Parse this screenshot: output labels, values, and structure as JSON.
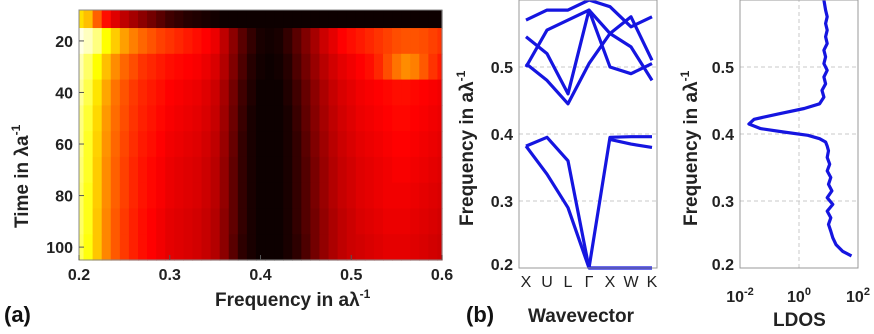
{
  "panel_labels": [
    "(a)",
    "(b)"
  ],
  "chart_data": [
    {
      "type": "heatmap",
      "panel": "(a)",
      "xlabel": "Frequency in aλ",
      "xlabel_sup": "-1",
      "ylabel": "Time in λa",
      "ylabel_sup": "-1",
      "xlim": [
        0.2,
        0.6
      ],
      "ylim": [
        105,
        8
      ],
      "xticks": [
        0.2,
        0.3,
        0.4,
        0.5,
        0.6
      ],
      "xtick_labels": [
        "0.2",
        "0.3",
        "0.4",
        "0.5",
        "0.6"
      ],
      "yticks": [
        20,
        40,
        60,
        80,
        100
      ],
      "ytick_labels": [
        "20",
        "40",
        "60",
        "80",
        "100"
      ],
      "colormap": "hot",
      "time_rows": [
        10,
        20,
        30,
        40,
        50,
        60,
        70,
        80,
        90,
        100
      ],
      "freq_cols": [
        0.2,
        0.21,
        0.22,
        0.23,
        0.24,
        0.25,
        0.26,
        0.27,
        0.28,
        0.29,
        0.3,
        0.31,
        0.32,
        0.33,
        0.34,
        0.35,
        0.36,
        0.37,
        0.38,
        0.39,
        0.4,
        0.41,
        0.42,
        0.43,
        0.44,
        0.45,
        0.46,
        0.47,
        0.48,
        0.49,
        0.5,
        0.51,
        0.52,
        0.53,
        0.54,
        0.55,
        0.56,
        0.57,
        0.58,
        0.59,
        0.6
      ],
      "intensity": [
        [
          0.75,
          0.7,
          0.55,
          0.42,
          0.35,
          0.3,
          0.26,
          0.22,
          0.18,
          0.14,
          0.1,
          0.08,
          0.06,
          0.05,
          0.04,
          0.03,
          0.02,
          0.02,
          0.02,
          0.02,
          0.02,
          0.02,
          0.02,
          0.02,
          0.02,
          0.02,
          0.02,
          0.02,
          0.02,
          0.02,
          0.02,
          0.02,
          0.02,
          0.02,
          0.02,
          0.02,
          0.02,
          0.02,
          0.02,
          0.02,
          0.02
        ],
        [
          0.98,
          0.95,
          0.9,
          0.8,
          0.72,
          0.65,
          0.6,
          0.56,
          0.53,
          0.5,
          0.48,
          0.46,
          0.44,
          0.42,
          0.4,
          0.37,
          0.3,
          0.22,
          0.14,
          0.08,
          0.04,
          0.03,
          0.04,
          0.08,
          0.14,
          0.2,
          0.26,
          0.32,
          0.36,
          0.4,
          0.42,
          0.44,
          0.46,
          0.48,
          0.5,
          0.52,
          0.53,
          0.53,
          0.52,
          0.5,
          0.48
        ],
        [
          0.94,
          0.88,
          0.8,
          0.7,
          0.62,
          0.56,
          0.52,
          0.48,
          0.46,
          0.44,
          0.42,
          0.41,
          0.4,
          0.39,
          0.37,
          0.34,
          0.28,
          0.2,
          0.12,
          0.06,
          0.03,
          0.02,
          0.03,
          0.06,
          0.12,
          0.18,
          0.24,
          0.29,
          0.33,
          0.36,
          0.38,
          0.4,
          0.42,
          0.46,
          0.52,
          0.58,
          0.62,
          0.6,
          0.54,
          0.48,
          0.44
        ],
        [
          0.92,
          0.86,
          0.76,
          0.66,
          0.58,
          0.53,
          0.49,
          0.46,
          0.44,
          0.42,
          0.4,
          0.39,
          0.38,
          0.37,
          0.35,
          0.32,
          0.26,
          0.18,
          0.1,
          0.05,
          0.02,
          0.02,
          0.02,
          0.05,
          0.1,
          0.16,
          0.22,
          0.27,
          0.31,
          0.34,
          0.36,
          0.38,
          0.39,
          0.4,
          0.41,
          0.42,
          0.42,
          0.41,
          0.4,
          0.39,
          0.38
        ],
        [
          0.9,
          0.84,
          0.74,
          0.64,
          0.57,
          0.52,
          0.48,
          0.45,
          0.43,
          0.41,
          0.39,
          0.38,
          0.37,
          0.36,
          0.34,
          0.31,
          0.25,
          0.17,
          0.09,
          0.04,
          0.02,
          0.02,
          0.02,
          0.04,
          0.09,
          0.15,
          0.21,
          0.26,
          0.3,
          0.33,
          0.35,
          0.37,
          0.38,
          0.39,
          0.4,
          0.41,
          0.41,
          0.4,
          0.39,
          0.38,
          0.37
        ],
        [
          0.9,
          0.83,
          0.73,
          0.63,
          0.56,
          0.51,
          0.47,
          0.44,
          0.42,
          0.4,
          0.38,
          0.37,
          0.36,
          0.35,
          0.33,
          0.3,
          0.24,
          0.16,
          0.08,
          0.04,
          0.02,
          0.02,
          0.02,
          0.04,
          0.08,
          0.14,
          0.2,
          0.25,
          0.29,
          0.32,
          0.34,
          0.36,
          0.37,
          0.38,
          0.39,
          0.4,
          0.4,
          0.39,
          0.38,
          0.37,
          0.36
        ],
        [
          0.89,
          0.83,
          0.72,
          0.62,
          0.55,
          0.5,
          0.46,
          0.43,
          0.41,
          0.39,
          0.37,
          0.36,
          0.35,
          0.34,
          0.32,
          0.29,
          0.23,
          0.15,
          0.08,
          0.04,
          0.02,
          0.02,
          0.02,
          0.04,
          0.08,
          0.13,
          0.19,
          0.24,
          0.28,
          0.31,
          0.33,
          0.35,
          0.36,
          0.37,
          0.38,
          0.39,
          0.39,
          0.38,
          0.37,
          0.36,
          0.35
        ],
        [
          0.88,
          0.82,
          0.72,
          0.62,
          0.55,
          0.5,
          0.46,
          0.43,
          0.41,
          0.39,
          0.37,
          0.36,
          0.35,
          0.34,
          0.32,
          0.29,
          0.23,
          0.15,
          0.08,
          0.04,
          0.02,
          0.02,
          0.02,
          0.04,
          0.08,
          0.13,
          0.19,
          0.24,
          0.28,
          0.31,
          0.33,
          0.35,
          0.36,
          0.37,
          0.38,
          0.38,
          0.38,
          0.37,
          0.36,
          0.35,
          0.34
        ],
        [
          0.88,
          0.82,
          0.71,
          0.61,
          0.54,
          0.49,
          0.45,
          0.42,
          0.4,
          0.38,
          0.36,
          0.35,
          0.34,
          0.33,
          0.31,
          0.28,
          0.22,
          0.15,
          0.08,
          0.04,
          0.02,
          0.02,
          0.02,
          0.04,
          0.08,
          0.13,
          0.18,
          0.23,
          0.27,
          0.3,
          0.32,
          0.34,
          0.35,
          0.36,
          0.37,
          0.37,
          0.37,
          0.36,
          0.35,
          0.34,
          0.33
        ],
        [
          0.87,
          0.81,
          0.71,
          0.61,
          0.54,
          0.49,
          0.45,
          0.42,
          0.4,
          0.38,
          0.36,
          0.35,
          0.34,
          0.33,
          0.31,
          0.28,
          0.22,
          0.14,
          0.07,
          0.04,
          0.02,
          0.02,
          0.02,
          0.04,
          0.07,
          0.12,
          0.18,
          0.23,
          0.27,
          0.3,
          0.32,
          0.33,
          0.34,
          0.35,
          0.36,
          0.36,
          0.36,
          0.35,
          0.34,
          0.33,
          0.32
        ]
      ]
    },
    {
      "type": "line",
      "panel": "(b)",
      "title": "",
      "xlabel": "Wavevector",
      "ylabel": "Frequency in aλ",
      "ylabel_sup": "-1",
      "categories": [
        "X",
        "U",
        "L",
        "Γ",
        "X",
        "W",
        "K"
      ],
      "ylim": [
        0.2,
        0.6
      ],
      "yticks": [
        0.2,
        0.3,
        0.4,
        0.5
      ],
      "ytick_labels": [
        "0.2",
        "0.3",
        "0.4",
        "0.5"
      ],
      "grid": true,
      "line_color": "#1515e0",
      "series": [
        {
          "x": [
            0,
            1,
            2,
            3,
            4,
            5,
            6
          ],
          "values": [
            0.382,
            0.34,
            0.29,
            0.2,
            0.2,
            0.2,
            0.2
          ]
        },
        {
          "x": [
            0,
            1,
            2,
            3
          ],
          "values": [
            0.382,
            0.395,
            0.36,
            0.2
          ]
        },
        {
          "x": [
            3,
            4,
            5,
            6
          ],
          "values": [
            0.2,
            0.395,
            0.396,
            0.396
          ]
        },
        {
          "x": [
            4,
            5,
            6
          ],
          "values": [
            0.392,
            0.385,
            0.38
          ]
        },
        {
          "x": [
            0,
            1,
            2,
            3,
            4,
            5,
            6
          ],
          "values": [
            0.505,
            0.48,
            0.445,
            0.505,
            0.55,
            0.53,
            0.48
          ]
        },
        {
          "x": [
            0,
            1,
            2,
            3,
            4,
            5,
            6
          ],
          "values": [
            0.545,
            0.52,
            0.46,
            0.585,
            0.5,
            0.49,
            0.505
          ]
        },
        {
          "x": [
            0,
            1,
            2,
            3,
            4,
            5,
            6
          ],
          "values": [
            0.5,
            0.555,
            0.57,
            0.585,
            0.55,
            0.575,
            0.51
          ]
        },
        {
          "x": [
            0,
            1,
            2,
            3,
            4,
            5,
            6
          ],
          "values": [
            0.57,
            0.585,
            0.585,
            0.6,
            0.59,
            0.56,
            0.575
          ]
        }
      ]
    },
    {
      "type": "line",
      "panel": "(b)",
      "xlabel": "LDOS",
      "ylabel": "Frequency in aλ",
      "ylabel_sup": "-1",
      "xscale": "log",
      "xlim": [
        0.01,
        100
      ],
      "xtick_labels": [
        "10",
        "10",
        "10"
      ],
      "xtick_exponents": [
        "-2",
        "0",
        "2"
      ],
      "ylim": [
        0.2,
        0.6
      ],
      "yticks": [
        0.2,
        0.3,
        0.4,
        0.5
      ],
      "ytick_labels": [
        "0.2",
        "0.3",
        "0.4",
        "0.5"
      ],
      "grid": true,
      "line_color": "#1515e0",
      "series": [
        {
          "x": [
            60,
            30,
            18,
            14,
            12,
            10,
            12,
            9,
            14,
            9,
            13,
            10,
            12,
            9,
            11,
            9,
            10,
            9,
            8,
            5,
            2,
            0.3,
            0.05,
            0.02,
            0.03,
            0.2,
            1.5,
            5,
            7,
            6,
            8,
            7,
            9,
            7,
            8,
            7,
            9,
            8,
            9,
            8,
            9,
            8,
            7
          ],
          "y": [
            0.218,
            0.225,
            0.235,
            0.245,
            0.255,
            0.265,
            0.275,
            0.285,
            0.295,
            0.305,
            0.315,
            0.325,
            0.335,
            0.345,
            0.355,
            0.365,
            0.375,
            0.382,
            0.388,
            0.393,
            0.398,
            0.403,
            0.408,
            0.415,
            0.422,
            0.43,
            0.438,
            0.445,
            0.455,
            0.465,
            0.475,
            0.485,
            0.495,
            0.505,
            0.515,
            0.525,
            0.535,
            0.545,
            0.555,
            0.565,
            0.575,
            0.585,
            0.6
          ]
        }
      ]
    }
  ]
}
